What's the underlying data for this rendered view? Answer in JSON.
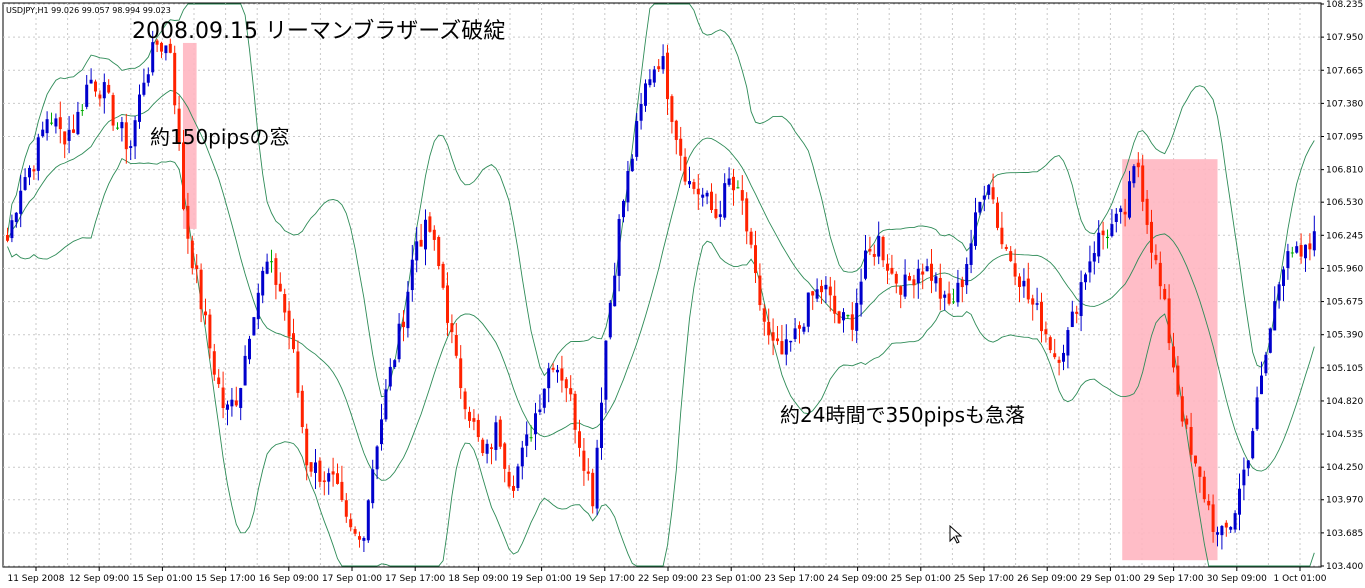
{
  "chart_data": {
    "type": "candlestick",
    "symbol_line": "USDJPY,H1  99.026 99.057 98.994 99.023",
    "title": "2008.09.15  リーマンブラザーズ破綻",
    "annotations": [
      "約150pipsの窓",
      "約24時間で350pipsも急落"
    ],
    "ylim": [
      103.4,
      108.235
    ],
    "y_ticks": [
      108.235,
      107.95,
      107.665,
      107.38,
      107.095,
      106.81,
      106.53,
      106.245,
      105.96,
      105.675,
      105.39,
      105.105,
      104.82,
      104.535,
      104.25,
      103.97,
      103.685,
      103.4
    ],
    "x_ticks": [
      "11 Sep 2008",
      "12 Sep 09:00",
      "15 Sep 01:00",
      "15 Sep 17:00",
      "16 Sep 09:00",
      "17 Sep 01:00",
      "17 Sep 17:00",
      "18 Sep 09:00",
      "19 Sep 01:00",
      "19 Sep 17:00",
      "22 Sep 09:00",
      "23 Sep 01:00",
      "23 Sep 17:00",
      "24 Sep 09:00",
      "25 Sep 01:00",
      "25 Sep 17:00",
      "26 Sep 09:00",
      "29 Sep 01:00",
      "29 Sep 17:00",
      "30 Sep 09:00",
      "1 Oct 01:00"
    ],
    "close_path": [
      106.2,
      106.7,
      106.9,
      107.3,
      107.1,
      107.2,
      107.6,
      107.5,
      107.2,
      107.0,
      107.6,
      107.9,
      107.85,
      106.4,
      105.8,
      105.2,
      104.7,
      104.9,
      105.6,
      106.0,
      105.8,
      105.2,
      104.3,
      104.2,
      104.1,
      103.7,
      103.6,
      104.4,
      105.0,
      105.5,
      106.2,
      106.3,
      105.8,
      105.1,
      104.7,
      104.3,
      104.6,
      104.1,
      104.4,
      104.8,
      105.2,
      105.0,
      104.5,
      104.0,
      105.4,
      106.4,
      107.0,
      107.6,
      107.8,
      107.2,
      106.7,
      106.6,
      106.4,
      106.7,
      106.5,
      105.8,
      105.3,
      105.2,
      105.4,
      105.7,
      105.8,
      105.5,
      105.5,
      106.0,
      106.2,
      105.9,
      105.8,
      106.0,
      105.9,
      105.6,
      105.8,
      106.3,
      106.8,
      106.2,
      106.0,
      105.7,
      105.5,
      105.2,
      105.4,
      105.9,
      106.2,
      106.3,
      106.4,
      106.9,
      106.2,
      105.6,
      104.9,
      104.3,
      104.0,
      103.6,
      103.8,
      104.3,
      104.9,
      105.6,
      106.2,
      106.0,
      106.2
    ],
    "highlight_zones": [
      {
        "label": "gap",
        "x_from_index": 13,
        "x_to_index": 14,
        "y_from": 107.9,
        "y_to": 106.3
      },
      {
        "label": "drop",
        "x_from_index": 82,
        "x_to_index": 89,
        "y_from": 106.9,
        "y_to": 103.45
      }
    ],
    "bollinger_bands": true,
    "colors": {
      "up": "#0000cc",
      "down": "#ff2200",
      "doji": "#00aa00",
      "band": "#2e8b57",
      "zone": "#ffb6c1"
    },
    "grid": true
  }
}
